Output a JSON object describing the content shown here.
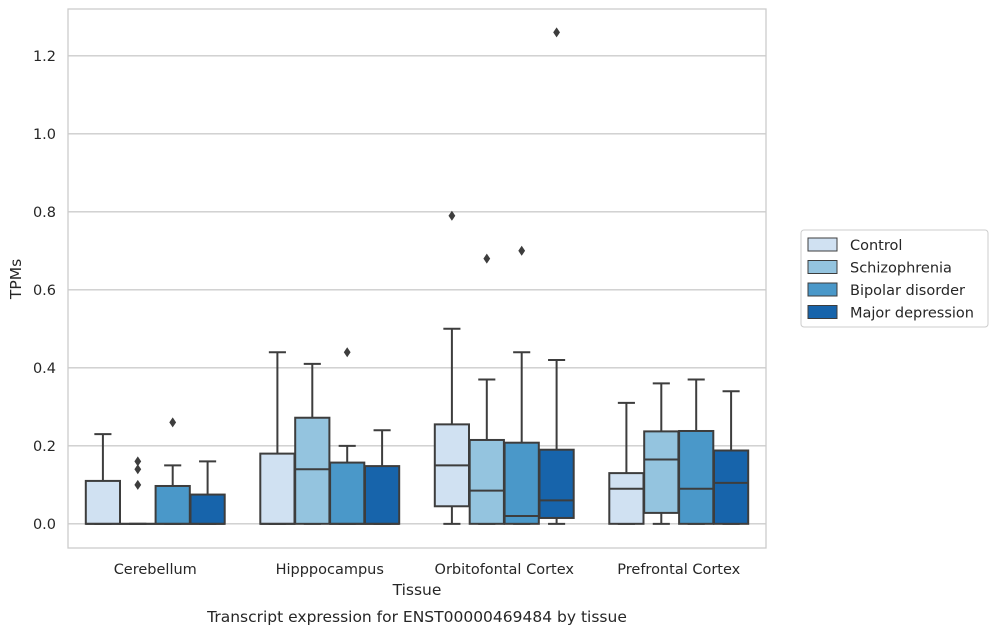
{
  "chart_data": {
    "type": "boxplot",
    "caption": "Transcript expression for ENST00000469484 by tissue",
    "xlabel": "Tissue",
    "ylabel": "TPMs",
    "ylim": [
      -0.062,
      1.32
    ],
    "yticks": [
      "0.0",
      "0.2",
      "0.4",
      "0.6",
      "0.8",
      "1.0",
      "1.2"
    ],
    "grid": "horizontal",
    "legend_position": "right",
    "categories": [
      "Cerebellum",
      "Hipppocampus",
      "Orbitofontal Cortex",
      "Prefrontal Cortex"
    ],
    "series": [
      {
        "name": "Control",
        "color": "#d0e1f2",
        "boxes": [
          {
            "q1": 0.0,
            "median": 0.0,
            "q3": 0.11,
            "whisker_low": 0.0,
            "whisker_high": 0.23,
            "outliers": []
          },
          {
            "q1": 0.0,
            "median": 0.0,
            "q3": 0.18,
            "whisker_low": 0.0,
            "whisker_high": 0.44,
            "outliers": []
          },
          {
            "q1": 0.045,
            "median": 0.15,
            "q3": 0.255,
            "whisker_low": 0.0,
            "whisker_high": 0.5,
            "outliers": [
              0.79
            ]
          },
          {
            "q1": 0.0,
            "median": 0.09,
            "q3": 0.13,
            "whisker_low": 0.0,
            "whisker_high": 0.31,
            "outliers": []
          }
        ]
      },
      {
        "name": "Schizophrenia",
        "color": "#94c4df",
        "boxes": [
          {
            "q1": 0.0,
            "median": 0.0,
            "q3": 0.0,
            "whisker_low": 0.0,
            "whisker_high": 0.0,
            "outliers": [
              0.1,
              0.14,
              0.16
            ]
          },
          {
            "q1": 0.0,
            "median": 0.14,
            "q3": 0.272,
            "whisker_low": 0.0,
            "whisker_high": 0.41,
            "outliers": []
          },
          {
            "q1": 0.0,
            "median": 0.085,
            "q3": 0.215,
            "whisker_low": 0.0,
            "whisker_high": 0.37,
            "outliers": [
              0.68
            ]
          },
          {
            "q1": 0.028,
            "median": 0.165,
            "q3": 0.237,
            "whisker_low": 0.0,
            "whisker_high": 0.36,
            "outliers": []
          }
        ]
      },
      {
        "name": "Bipolar disorder",
        "color": "#4a98c9",
        "boxes": [
          {
            "q1": 0.0,
            "median": 0.0,
            "q3": 0.097,
            "whisker_low": 0.0,
            "whisker_high": 0.15,
            "outliers": [
              0.26
            ]
          },
          {
            "q1": 0.0,
            "median": 0.0,
            "q3": 0.157,
            "whisker_low": 0.0,
            "whisker_high": 0.2,
            "outliers": [
              0.44
            ]
          },
          {
            "q1": 0.0,
            "median": 0.02,
            "q3": 0.208,
            "whisker_low": 0.0,
            "whisker_high": 0.44,
            "outliers": [
              0.7
            ]
          },
          {
            "q1": 0.0,
            "median": 0.09,
            "q3": 0.238,
            "whisker_low": 0.0,
            "whisker_high": 0.37,
            "outliers": []
          }
        ]
      },
      {
        "name": "Major depression",
        "color": "#1764ab",
        "boxes": [
          {
            "q1": 0.0,
            "median": 0.0,
            "q3": 0.075,
            "whisker_low": 0.0,
            "whisker_high": 0.16,
            "outliers": []
          },
          {
            "q1": 0.0,
            "median": 0.0,
            "q3": 0.148,
            "whisker_low": 0.0,
            "whisker_high": 0.24,
            "outliers": []
          },
          {
            "q1": 0.015,
            "median": 0.06,
            "q3": 0.19,
            "whisker_low": 0.0,
            "whisker_high": 0.42,
            "outliers": [
              1.26
            ]
          },
          {
            "q1": 0.0,
            "median": 0.105,
            "q3": 0.188,
            "whisker_low": 0.0,
            "whisker_high": 0.34,
            "outliers": []
          }
        ]
      }
    ]
  }
}
